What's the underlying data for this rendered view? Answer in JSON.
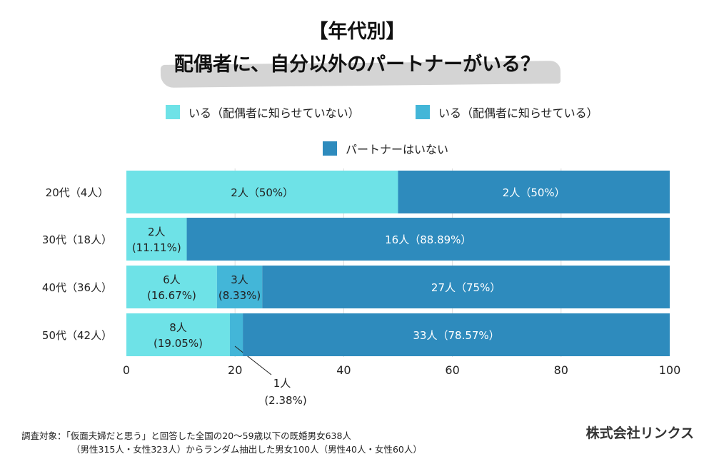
{
  "title": {
    "line1": "【年代別】",
    "line2": "配偶者に、自分以外のパートナーがいる？"
  },
  "colors": {
    "not_told": "#6ee2e7",
    "told": "#43b6d8",
    "none": "#2e8bbd"
  },
  "chart_data": {
    "type": "bar",
    "orientation": "horizontal",
    "stacked": true,
    "legend": [
      "いる（配偶者に知らせていない）",
      "いる（配偶者に知らせている）",
      "パートナーはいない"
    ],
    "legend_placement": "top",
    "categories": [
      "20代（4人）",
      "30代（18人）",
      "40代（36人）",
      "50代（42人）"
    ],
    "series": [
      {
        "name": "いる（配偶者に知らせていない）",
        "values": [
          50,
          11.11,
          16.67,
          19.05
        ],
        "labels": [
          [
            "2人（50%）"
          ],
          [
            "2人",
            "(11.11%)"
          ],
          [
            "6人",
            "(16.67%)"
          ],
          [
            "8人",
            "(19.05%)"
          ]
        ]
      },
      {
        "name": "いる（配偶者に知らせている）",
        "values": [
          0,
          0,
          8.33,
          2.38
        ],
        "labels": [
          [],
          [],
          [
            "3人",
            "(8.33%)"
          ],
          [
            "1人",
            "(2.38%)"
          ]
        ]
      },
      {
        "name": "パートナーはいない",
        "values": [
          50,
          88.89,
          75,
          78.57
        ],
        "labels": [
          [
            "2人（50%）"
          ],
          [
            "16人（88.89%）"
          ],
          [
            "27人（75%）"
          ],
          [
            "33人（78.57%）"
          ]
        ]
      }
    ],
    "xlim": [
      0,
      100
    ],
    "xticks": [
      "0",
      "20",
      "40",
      "60",
      "80",
      "100"
    ],
    "grid": true
  },
  "footer": {
    "line1": "調査対象：「仮面夫婦だと思う」と回答した全国の20～59歳以下の既婚男女638人",
    "line2": "（男性315人・女性323人）からランダム抽出した男女100人（男性40人・女性60人）",
    "company": "株式会社リンクス"
  }
}
